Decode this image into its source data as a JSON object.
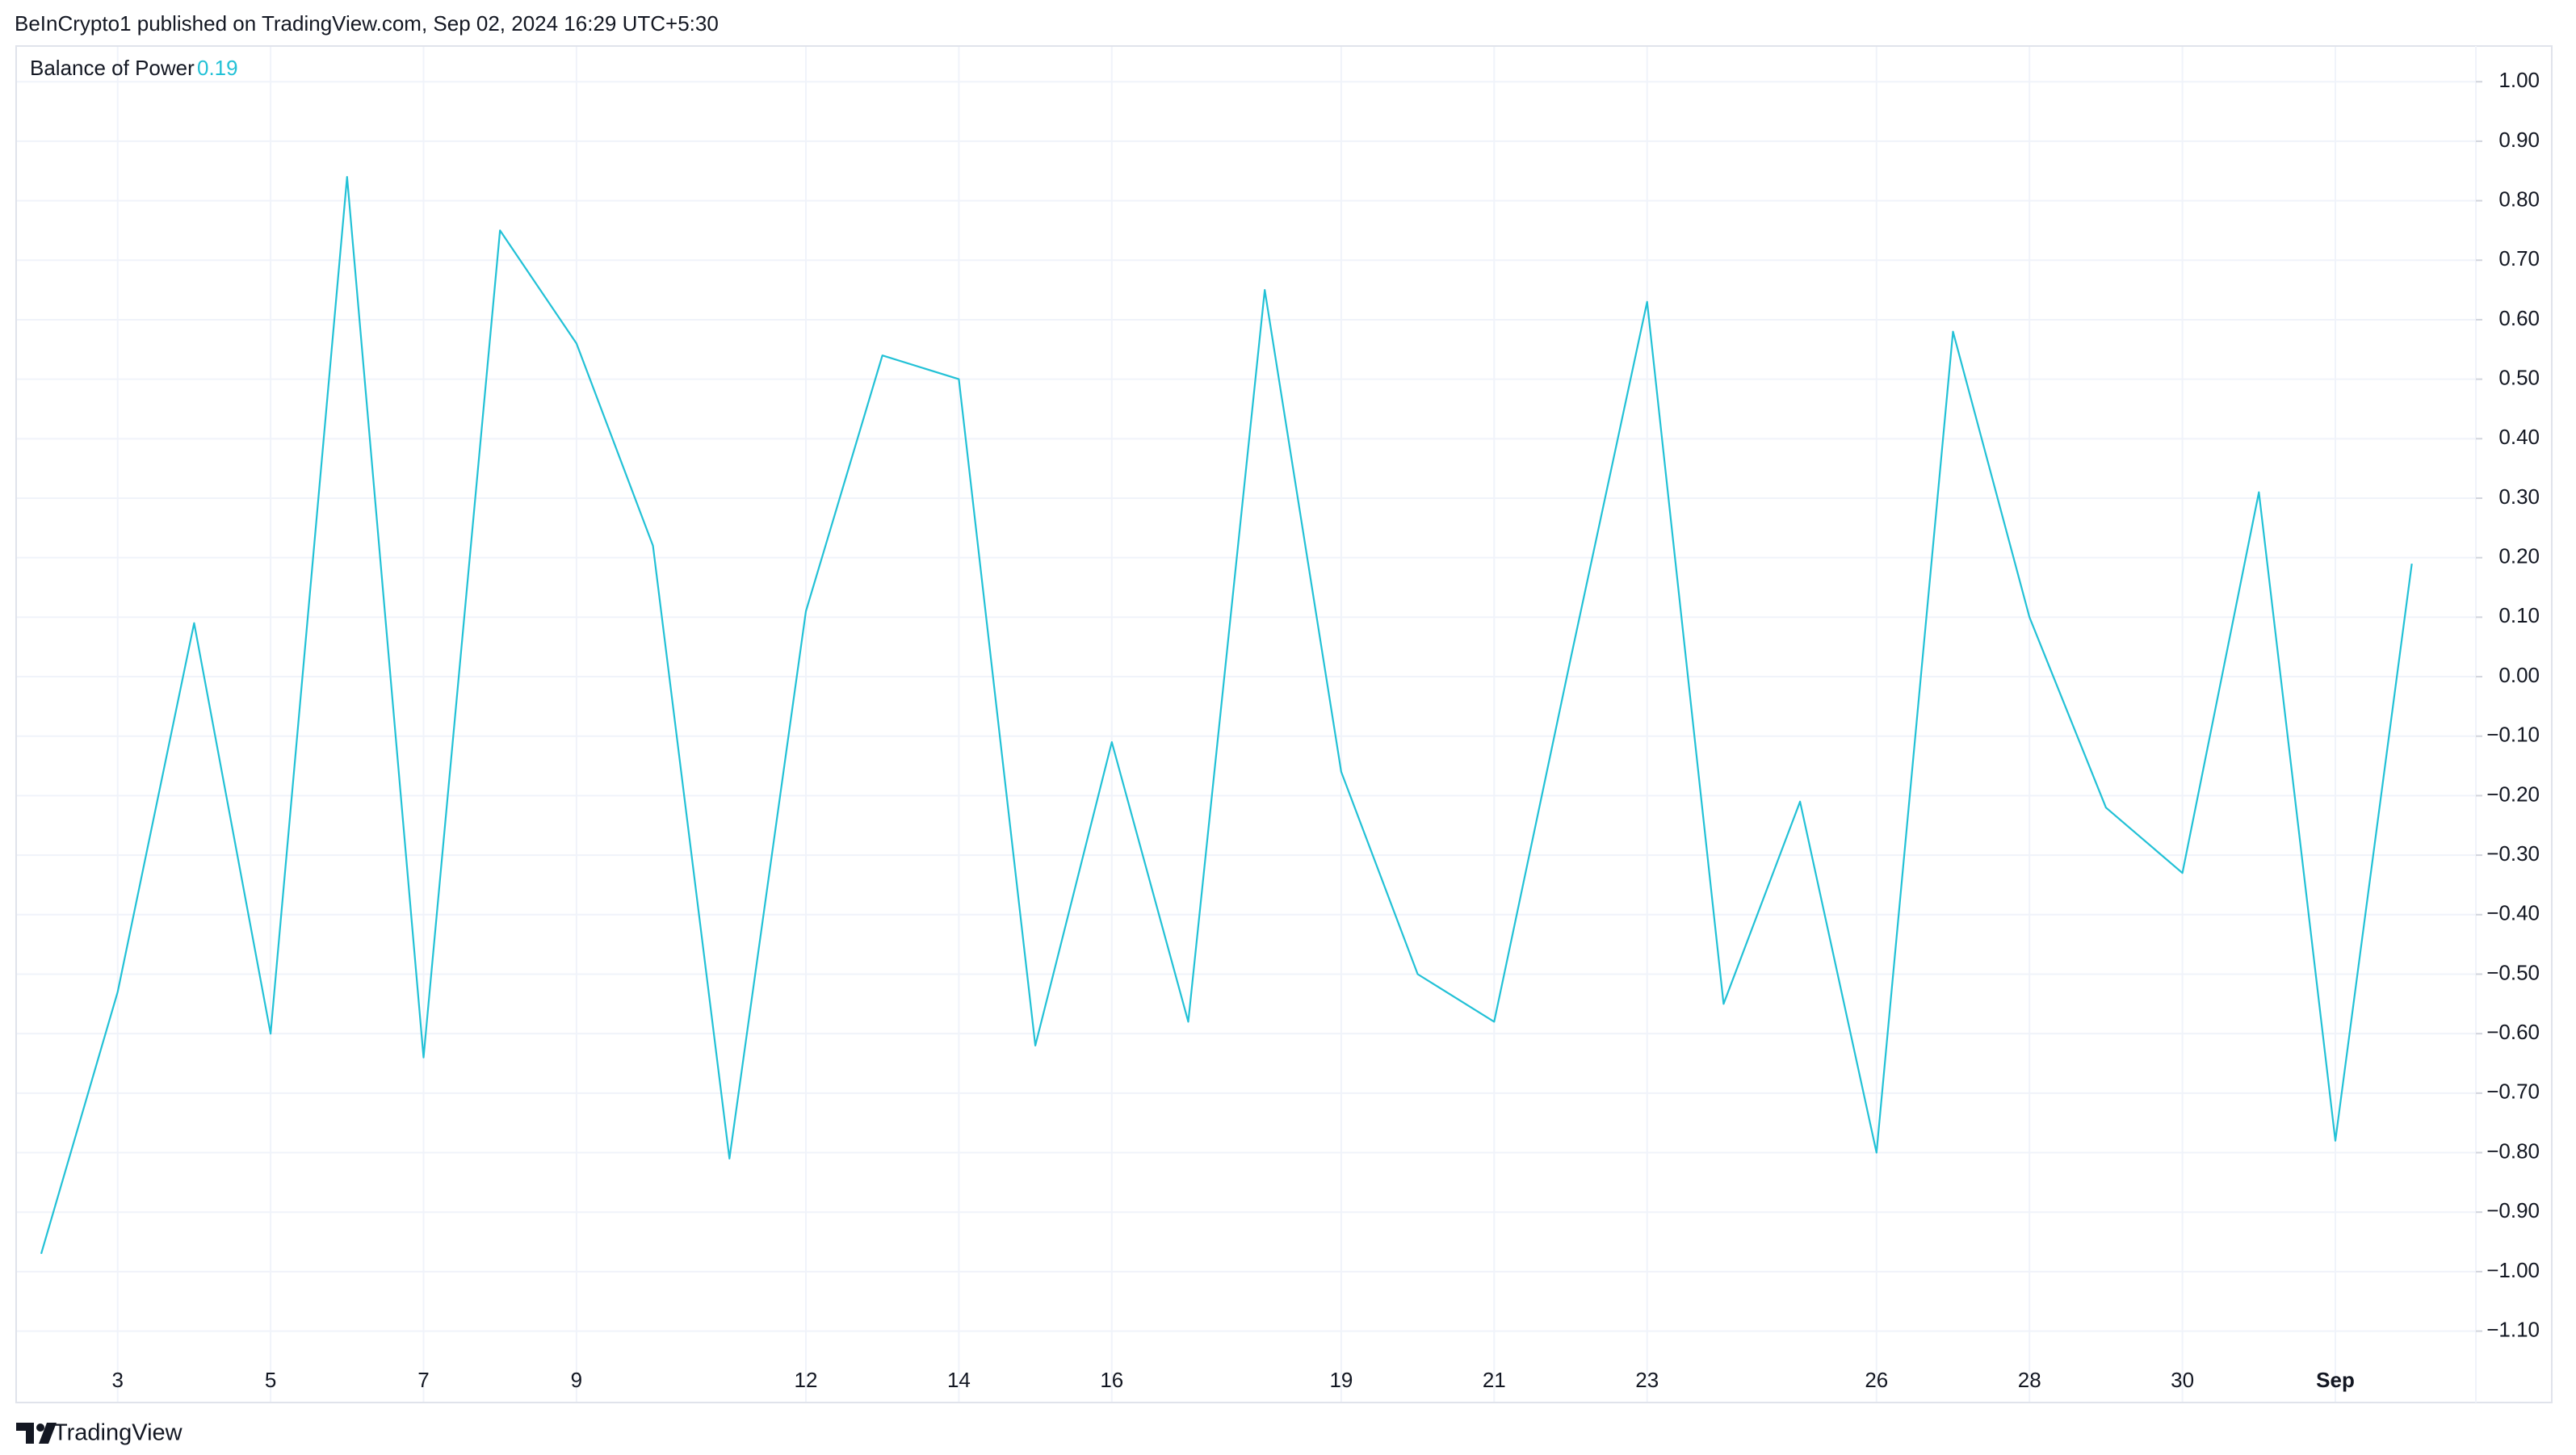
{
  "header": "BeInCrypto1 published on TradingView.com, Sep 02, 2024 16:29 UTC+5:30",
  "footer": "TradingView",
  "chart_data": {
    "type": "line",
    "categories": [
      null,
      "3",
      null,
      "5",
      null,
      "7",
      null,
      "9",
      null,
      null,
      "12",
      null,
      "14",
      null,
      "16",
      null,
      null,
      "19",
      null,
      "21",
      null,
      "23",
      null,
      null,
      "26",
      null,
      "28",
      null,
      "30",
      null,
      "Sep",
      null
    ],
    "series": [
      {
        "name": "Balance of Power",
        "color": "#22c1d6",
        "values": [
          -0.97,
          -0.53,
          0.09,
          -0.6,
          0.84,
          -0.64,
          0.75,
          0.56,
          0.22,
          -0.81,
          0.11,
          0.54,
          0.5,
          -0.62,
          -0.11,
          -0.58,
          0.65,
          -0.16,
          -0.5,
          -0.58,
          0.03,
          0.63,
          -0.55,
          -0.21,
          -0.8,
          0.58,
          0.1,
          -0.22,
          -0.33,
          0.31,
          -0.78,
          0.19
        ]
      }
    ],
    "ylim": [
      -1.22,
      1.06
    ],
    "yticks": [
      {
        "value": 1.0,
        "label": "1.00"
      },
      {
        "value": 0.9,
        "label": "0.90"
      },
      {
        "value": 0.8,
        "label": "0.80"
      },
      {
        "value": 0.7,
        "label": "0.70"
      },
      {
        "value": 0.6,
        "label": "0.60"
      },
      {
        "value": 0.5,
        "label": "0.50"
      },
      {
        "value": 0.4,
        "label": "0.40"
      },
      {
        "value": 0.3,
        "label": "0.30"
      },
      {
        "value": 0.2,
        "label": "0.20"
      },
      {
        "value": 0.1,
        "label": "0.10"
      },
      {
        "value": 0,
        "label": "0.00"
      },
      {
        "value": -0.1,
        "label": "−0.10"
      },
      {
        "value": -0.2,
        "label": "−0.20"
      },
      {
        "value": -0.3,
        "label": "−0.30"
      },
      {
        "value": -0.4,
        "label": "−0.40"
      },
      {
        "value": -0.5,
        "label": "−0.50"
      },
      {
        "value": -0.6,
        "label": "−0.60"
      },
      {
        "value": -0.7,
        "label": "−0.70"
      },
      {
        "value": -0.8,
        "label": "−0.80"
      },
      {
        "value": -0.9,
        "label": "−0.90"
      },
      {
        "value": -1.0,
        "label": "−1.00"
      },
      {
        "value": -1.1,
        "label": "−1.10"
      }
    ],
    "grid": true
  }
}
